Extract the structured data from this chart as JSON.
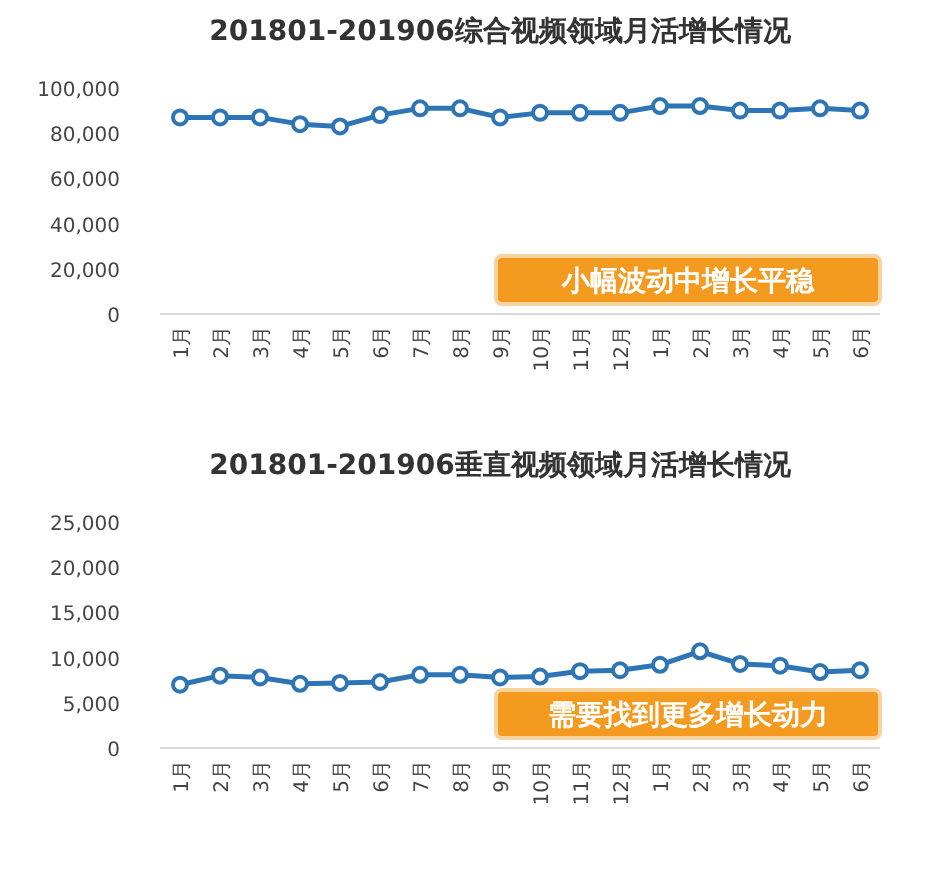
{
  "chart_data": [
    {
      "type": "line",
      "title": "201801-201906综合视频领域月活增长情况",
      "categories": [
        "1月",
        "2月",
        "3月",
        "4月",
        "5月",
        "6月",
        "7月",
        "8月",
        "9月",
        "10月",
        "11月",
        "12月",
        "1月",
        "2月",
        "3月",
        "4月",
        "5月",
        "6月"
      ],
      "series": [
        {
          "color": "#2e75b6",
          "values": [
            87000,
            87000,
            87000,
            84000,
            83000,
            88000,
            91000,
            91000,
            87000,
            89000,
            89000,
            89000,
            92000,
            92000,
            90000,
            90000,
            91000,
            90000
          ]
        }
      ],
      "ylim": [
        0,
        100000
      ],
      "yticks": [
        {
          "value": 0,
          "label": "0"
        },
        {
          "value": 20000,
          "label": "20,000"
        },
        {
          "value": 40000,
          "label": "40,000"
        },
        {
          "value": 60000,
          "label": "60,000"
        },
        {
          "value": 80000,
          "label": "80,000"
        },
        {
          "value": 100000,
          "label": "100,000"
        }
      ],
      "marker": "circle",
      "grid": false,
      "annotations": [
        "小幅波动中增长平稳"
      ]
    },
    {
      "type": "line",
      "title": "201801-201906垂直视频领域月活增长情况",
      "categories": [
        "1月",
        "2月",
        "3月",
        "4月",
        "5月",
        "6月",
        "7月",
        "8月",
        "9月",
        "10月",
        "11月",
        "12月",
        "1月",
        "2月",
        "3月",
        "4月",
        "5月",
        "6月"
      ],
      "series": [
        {
          "color": "#2e75b6",
          "values": [
            7000,
            8000,
            7800,
            7100,
            7200,
            7300,
            8100,
            8100,
            7800,
            7900,
            8500,
            8600,
            9200,
            10700,
            9300,
            9100,
            8400,
            8600
          ]
        }
      ],
      "ylim": [
        0,
        25000
      ],
      "yticks": [
        {
          "value": 0,
          "label": "0"
        },
        {
          "value": 5000,
          "label": "5,000"
        },
        {
          "value": 10000,
          "label": "10,000"
        },
        {
          "value": 15000,
          "label": "15,000"
        },
        {
          "value": 20000,
          "label": "20,000"
        },
        {
          "value": 25000,
          "label": "25,000"
        }
      ],
      "marker": "circle",
      "grid": false,
      "annotations": [
        "需要找到更多增长动力"
      ]
    }
  ]
}
